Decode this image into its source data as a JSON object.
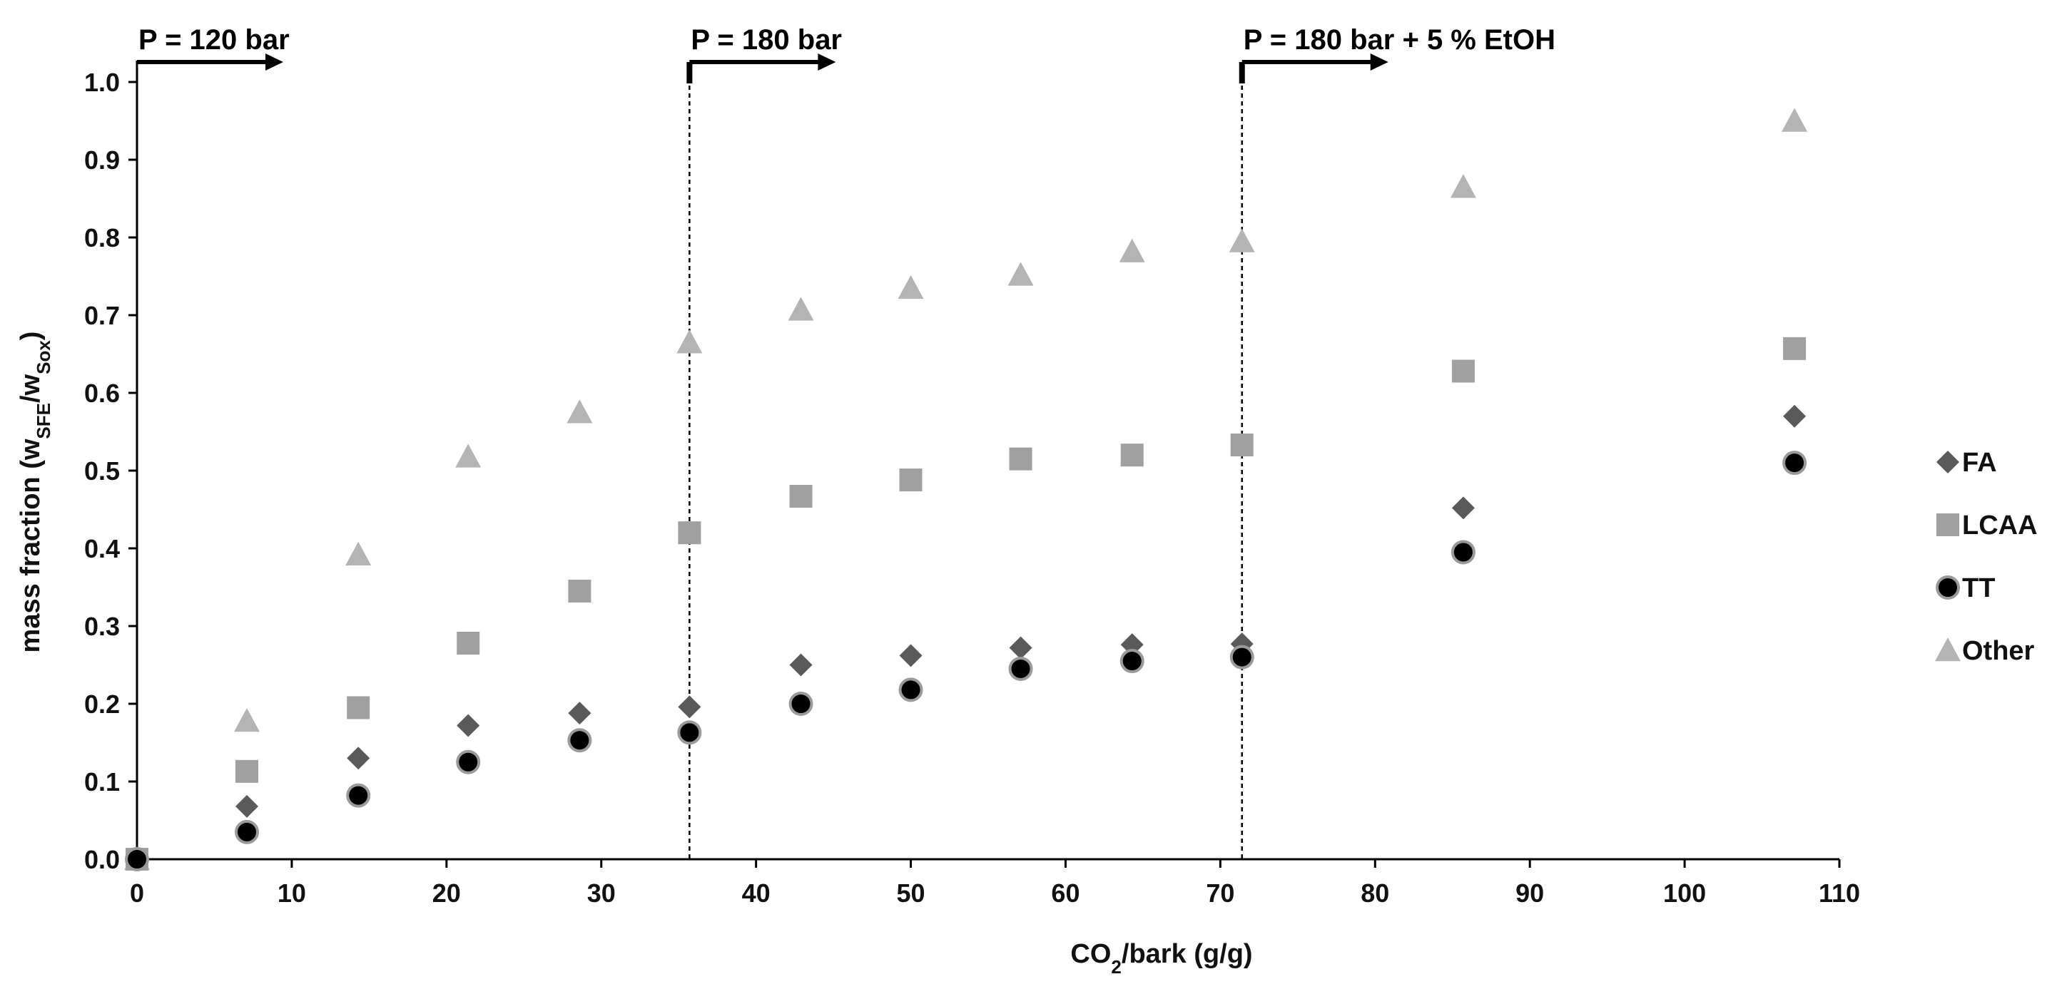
{
  "chart_data": {
    "type": "scatter",
    "xlabel": "CO₂/bark (g/g)",
    "xlabel_parts": [
      "CO",
      "2",
      "/bark (g/g)"
    ],
    "ylabel": "mass fraction (w_SFE/w_Sox)",
    "ylabel_parts": [
      "mass fraction (w",
      "SFE",
      "/w",
      "Sox",
      ")"
    ],
    "xlim": [
      0,
      110
    ],
    "ylim": [
      0.0,
      1.0
    ],
    "x_ticks": [
      0,
      10,
      20,
      30,
      40,
      50,
      60,
      70,
      80,
      90,
      100,
      110
    ],
    "x_tick_labels": [
      "0",
      "10",
      "20",
      "30",
      "40",
      "50",
      "60",
      "70",
      "80",
      "90",
      "100",
      "110"
    ],
    "y_ticks": [
      0.0,
      0.1,
      0.2,
      0.3,
      0.4,
      0.5,
      0.6,
      0.7,
      0.8,
      0.9,
      1.0
    ],
    "y_tick_labels": [
      "0.0",
      "0.1",
      "0.2",
      "0.3",
      "0.4",
      "0.5",
      "0.6",
      "0.7",
      "0.8",
      "0.9",
      "1.0"
    ],
    "grid": false,
    "legend_position": "right",
    "series": [
      {
        "name": "FA",
        "marker": "diamond",
        "color": "#5a5a5a",
        "x": [
          0,
          7.1,
          14.3,
          21.4,
          28.6,
          35.7,
          42.9,
          50.0,
          57.1,
          64.3,
          71.4,
          85.7,
          107.1
        ],
        "y": [
          0.0,
          0.068,
          0.13,
          0.172,
          0.188,
          0.196,
          0.25,
          0.262,
          0.272,
          0.276,
          0.277,
          0.452,
          0.57
        ]
      },
      {
        "name": "LCAA",
        "marker": "square",
        "color": "#a0a0a0",
        "x": [
          0,
          7.1,
          14.3,
          21.4,
          28.6,
          35.7,
          42.9,
          50.0,
          57.1,
          64.3,
          71.4,
          85.7,
          107.1
        ],
        "y": [
          0.0,
          0.113,
          0.195,
          0.278,
          0.345,
          0.42,
          0.467,
          0.488,
          0.515,
          0.52,
          0.533,
          0.628,
          0.657
        ]
      },
      {
        "name": "TT",
        "marker": "circle",
        "color": "#000000",
        "x": [
          0,
          7.1,
          14.3,
          21.4,
          28.6,
          35.7,
          42.9,
          50.0,
          57.1,
          64.3,
          71.4,
          85.7,
          107.1
        ],
        "y": [
          0.0,
          0.035,
          0.082,
          0.125,
          0.153,
          0.163,
          0.2,
          0.218,
          0.245,
          0.255,
          0.26,
          0.395,
          0.51
        ]
      },
      {
        "name": "Other",
        "marker": "triangle",
        "color": "#b4b4b4",
        "x": [
          0,
          7.1,
          14.3,
          21.4,
          28.6,
          35.7,
          42.9,
          50.0,
          57.1,
          64.3,
          71.4,
          85.7,
          107.1
        ],
        "y": [
          0.0,
          0.178,
          0.392,
          0.518,
          0.575,
          0.665,
          0.707,
          0.735,
          0.752,
          0.782,
          0.795,
          0.865,
          0.95
        ]
      }
    ],
    "annotations": [
      {
        "label": "P = 120 bar",
        "x": 0
      },
      {
        "label": "P = 180 bar",
        "x": 35.7
      },
      {
        "label": "P = 180 bar + 5 % EtOH",
        "x": 71.4
      }
    ]
  }
}
